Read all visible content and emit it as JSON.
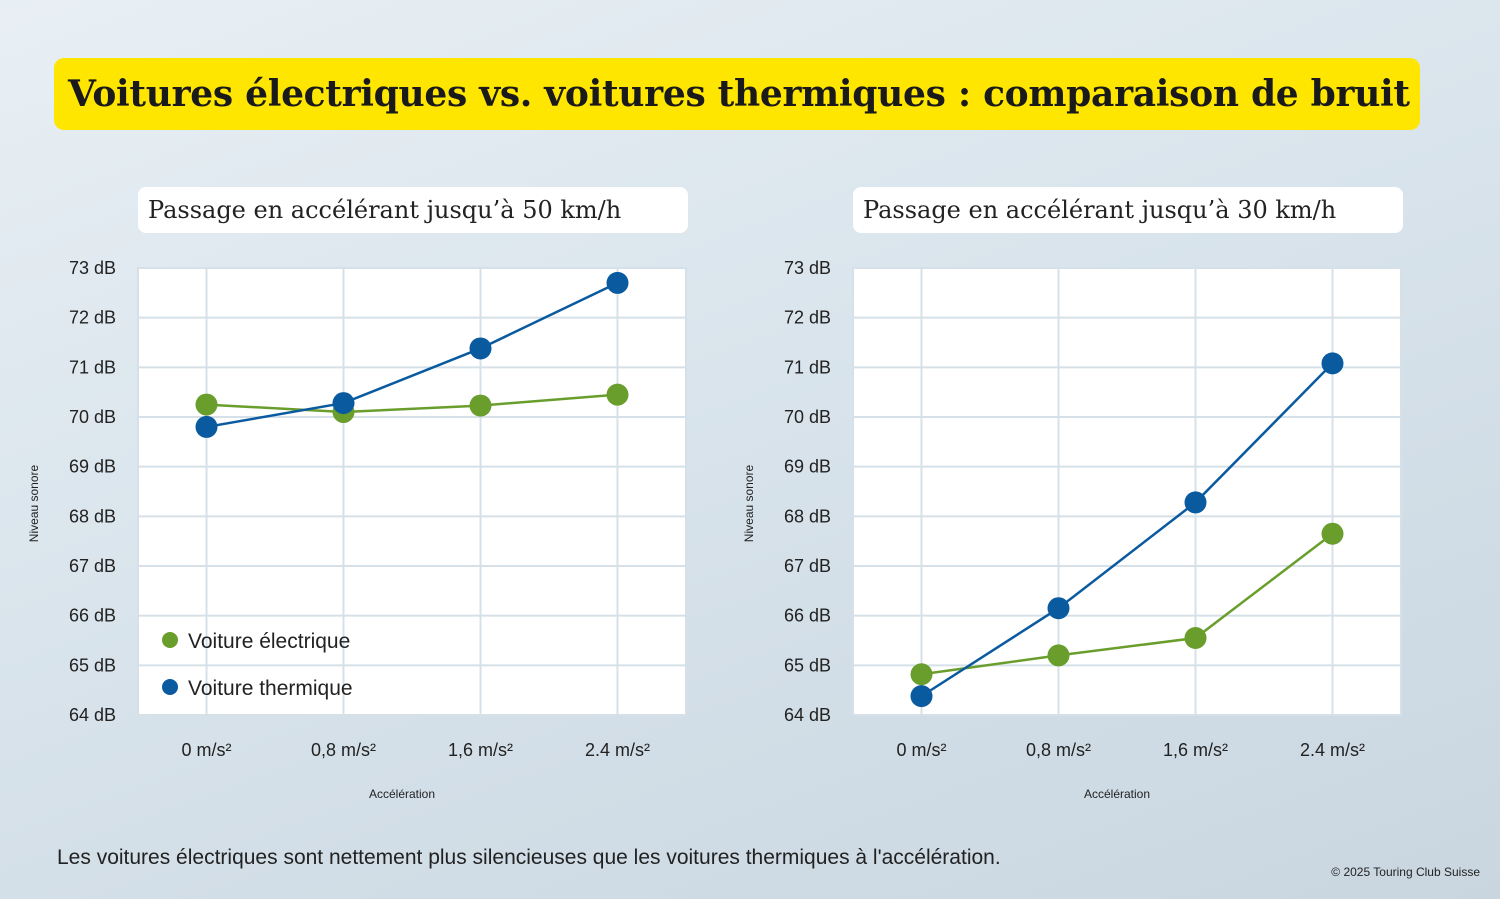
{
  "title": "Voitures électriques vs. voitures thermiques : comparaison de bruit",
  "footnote": "Les voitures électriques sont nettement plus silencieuses que les voitures thermiques à l'accélération.",
  "copyright": "© 2025 Touring Club Suisse",
  "colors": {
    "banner": "#ffe600",
    "electric": "#6a9e2c",
    "thermal": "#0a5aa0",
    "plot_bg": "#ffffff",
    "grid": "#d5e0e8"
  },
  "chart_data": [
    {
      "type": "line",
      "title": "Passage en accélérant jusqu’à 50 km/h",
      "xlabel": "Accélération",
      "ylabel": "Niveau sonore",
      "categories": [
        "0 m/s²",
        "0,8 m/s²",
        "1,6 m/s²",
        "2.4 m/s²"
      ],
      "y_ticks": [
        "64 dB",
        "65 dB",
        "66 dB",
        "67 dB",
        "68 dB",
        "69 dB",
        "70 dB",
        "71 dB",
        "72 dB",
        "73 dB"
      ],
      "ylim": [
        64,
        73
      ],
      "grid": true,
      "legend_position": "bottom-left",
      "series": [
        {
          "name": "Voiture électrique",
          "color": "#6a9e2c",
          "values": [
            70.25,
            70.1,
            70.23,
            70.45
          ]
        },
        {
          "name": "Voiture thermique",
          "color": "#0a5aa0",
          "values": [
            69.8,
            70.28,
            71.38,
            72.7
          ]
        }
      ]
    },
    {
      "type": "line",
      "title": "Passage en accélérant jusqu’à 30 km/h",
      "xlabel": "Accélération",
      "ylabel": "Niveau sonore",
      "categories": [
        "0 m/s²",
        "0,8 m/s²",
        "1,6 m/s²",
        "2.4 m/s²"
      ],
      "y_ticks": [
        "64 dB",
        "65 dB",
        "66 dB",
        "67 dB",
        "68 dB",
        "69 dB",
        "70 dB",
        "71 dB",
        "72 dB",
        "73 dB"
      ],
      "ylim": [
        64,
        73
      ],
      "grid": true,
      "legend_position": "none",
      "series": [
        {
          "name": "Voiture électrique",
          "color": "#6a9e2c",
          "values": [
            64.82,
            65.2,
            65.55,
            67.65
          ]
        },
        {
          "name": "Voiture thermique",
          "color": "#0a5aa0",
          "values": [
            64.38,
            66.15,
            68.28,
            71.08
          ]
        }
      ]
    }
  ]
}
